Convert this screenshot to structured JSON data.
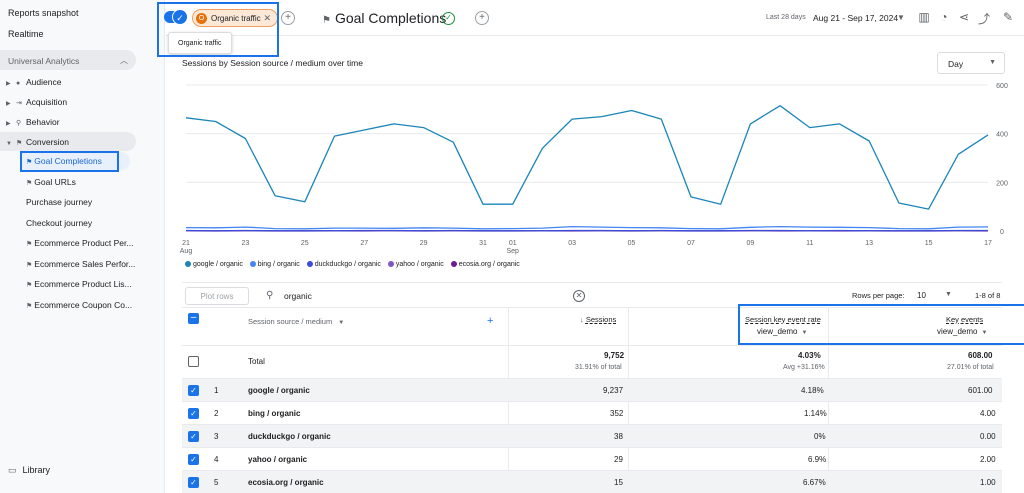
{
  "sidebar": {
    "reports_snapshot": "Reports snapshot",
    "realtime": "Realtime",
    "section": "Universal Analytics",
    "items": [
      {
        "label": "Audience",
        "icon": "person-icon"
      },
      {
        "label": "Acquisition",
        "icon": "acquisition-icon"
      },
      {
        "label": "Behavior",
        "icon": "behavior-icon"
      },
      {
        "label": "Conversion",
        "icon": "flag-icon"
      }
    ],
    "subitems": [
      {
        "label": "Goal Completions",
        "flag": true
      },
      {
        "label": "Goal URLs",
        "flag": true
      },
      {
        "label": "Purchase journey",
        "flag": false
      },
      {
        "label": "Checkout journey",
        "flag": false
      },
      {
        "label": "Ecommerce Product Per...",
        "flag": true
      },
      {
        "label": "Ecommerce Sales Perfor...",
        "flag": true
      },
      {
        "label": "Ecommerce Product Lis...",
        "flag": true
      },
      {
        "label": "Ecommerce Coupon Co...",
        "flag": true
      }
    ],
    "library": "Library"
  },
  "topbar": {
    "chip_label": "Organic traffic",
    "tooltip": "Organic traffic",
    "title": "Goal Completions",
    "date_label": "Last 28 days",
    "date_range": "Aug 21 - Sep 17, 2024"
  },
  "chart_card": {
    "title": "Sessions by Session source / medium over time",
    "granularity": "Day"
  },
  "chart_data": {
    "type": "line",
    "x": [
      "21 Aug",
      "22",
      "23",
      "24",
      "25",
      "26",
      "27",
      "28",
      "29",
      "30",
      "31",
      "01 Sep",
      "02",
      "03",
      "04",
      "05",
      "06",
      "07",
      "08",
      "09",
      "10",
      "11",
      "12",
      "13",
      "14",
      "15",
      "16",
      "17"
    ],
    "xticks": [
      {
        "i": 0,
        "l": "21",
        "l2": "Aug"
      },
      {
        "i": 2,
        "l": "23"
      },
      {
        "i": 4,
        "l": "25"
      },
      {
        "i": 6,
        "l": "27"
      },
      {
        "i": 8,
        "l": "29"
      },
      {
        "i": 10,
        "l": "31"
      },
      {
        "i": 11,
        "l": "01",
        "l2": "Sep"
      },
      {
        "i": 13,
        "l": "03"
      },
      {
        "i": 15,
        "l": "05"
      },
      {
        "i": 17,
        "l": "07"
      },
      {
        "i": 19,
        "l": "09"
      },
      {
        "i": 21,
        "l": "11"
      },
      {
        "i": 23,
        "l": "13"
      },
      {
        "i": 25,
        "l": "15"
      },
      {
        "i": 27,
        "l": "17"
      }
    ],
    "yticks": [
      0,
      200,
      400,
      600
    ],
    "ylim": [
      0,
      600
    ],
    "series": [
      {
        "name": "google / organic",
        "color": "#1a85b8",
        "values": [
          465,
          450,
          380,
          145,
          120,
          390,
          415,
          440,
          425,
          365,
          110,
          110,
          340,
          460,
          470,
          495,
          460,
          140,
          110,
          440,
          515,
          425,
          440,
          370,
          115,
          90,
          315,
          395
        ]
      },
      {
        "name": "bing / organic",
        "color": "#4285f4",
        "values": [
          14,
          13,
          16,
          10,
          9,
          12,
          12,
          11,
          13,
          12,
          9,
          10,
          12,
          18,
          16,
          14,
          13,
          10,
          9,
          15,
          18,
          16,
          15,
          14,
          10,
          9,
          16,
          17
        ]
      },
      {
        "name": "duckduckgo / organic",
        "color": "#3c4bd8",
        "values": [
          2,
          1,
          2,
          1,
          1,
          1,
          2,
          2,
          1,
          2,
          1,
          1,
          1,
          2,
          2,
          1,
          2,
          1,
          1,
          2,
          2,
          1,
          2,
          1,
          1,
          1,
          2,
          2
        ]
      },
      {
        "name": "yahoo / organic",
        "color": "#7e57c2",
        "values": [
          1,
          1,
          1,
          1,
          1,
          1,
          1,
          1,
          1,
          1,
          1,
          1,
          1,
          1,
          1,
          1,
          1,
          1,
          1,
          1,
          1,
          1,
          1,
          1,
          1,
          1,
          1,
          1
        ]
      },
      {
        "name": "ecosia.org / organic",
        "color": "#6a1b9a",
        "values": [
          1,
          0,
          1,
          0,
          0,
          1,
          0,
          1,
          0,
          1,
          0,
          0,
          1,
          0,
          1,
          0,
          1,
          0,
          0,
          1,
          0,
          1,
          0,
          1,
          0,
          0,
          1,
          0
        ]
      }
    ]
  },
  "table": {
    "plot_rows": "Plot rows",
    "search_value": "organic",
    "rows_per_page_label": "Rows per page:",
    "rows_per_page": "10",
    "range": "1-8 of 8",
    "dim_header": "Session source / medium",
    "sessions_header": "Sessions",
    "rate_header": "Session key event rate",
    "rate_event": "view_demo",
    "key_header": "Key events",
    "key_event": "view_demo",
    "total_label": "Total",
    "total_sessions": "9,752",
    "total_sessions_sub": "31.91% of total",
    "total_rate": "4.03%",
    "total_rate_sub": "Avg +31.16%",
    "total_key": "608.00",
    "total_key_sub": "27.01% of total",
    "rows": [
      {
        "n": "1",
        "dim": "google / organic",
        "sessions": "9,237",
        "rate": "4.18%",
        "key": "601.00"
      },
      {
        "n": "2",
        "dim": "bing / organic",
        "sessions": "352",
        "rate": "1.14%",
        "key": "4.00"
      },
      {
        "n": "3",
        "dim": "duckduckgo / organic",
        "sessions": "38",
        "rate": "0%",
        "key": "0.00"
      },
      {
        "n": "4",
        "dim": "yahoo / organic",
        "sessions": "29",
        "rate": "6.9%",
        "key": "2.00"
      },
      {
        "n": "5",
        "dim": "ecosia.org / organic",
        "sessions": "15",
        "rate": "6.67%",
        "key": "1.00"
      }
    ]
  }
}
